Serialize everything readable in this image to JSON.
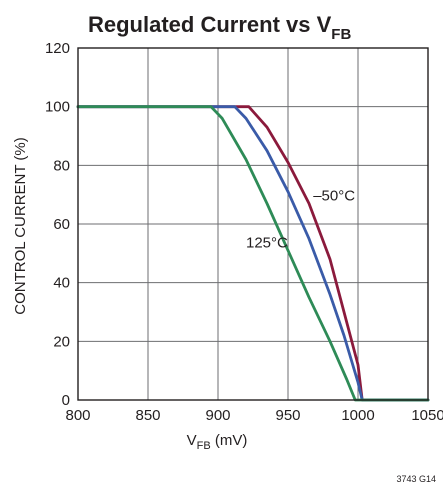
{
  "chart_data": {
    "type": "line",
    "title_main": "Regulated Current vs V",
    "title_sub": "FB",
    "xlabel_main": "V",
    "xlabel_sub": "FB",
    "xlabel_unit": " (mV)",
    "ylabel": "CONTROL CURRENT (%)",
    "xlim": [
      800,
      1050
    ],
    "ylim": [
      0,
      120
    ],
    "xticks": [
      800,
      850,
      900,
      950,
      1000,
      1050
    ],
    "yticks": [
      0,
      20,
      40,
      60,
      80,
      100,
      120
    ],
    "grid": true,
    "series": [
      {
        "name": "–50°C",
        "color": "#8b1a3c",
        "x": [
          800,
          922,
          935,
          950,
          965,
          980,
          990,
          1000,
          1003,
          1050
        ],
        "y": [
          100,
          100,
          93,
          81,
          67,
          48,
          30,
          12,
          0,
          0
        ]
      },
      {
        "name": "",
        "color": "#3a5ba8",
        "x": [
          800,
          912,
          920,
          935,
          950,
          965,
          980,
          990,
          1000,
          1003,
          1050
        ],
        "y": [
          100,
          100,
          96,
          85,
          71,
          55,
          36,
          22,
          6,
          0,
          0
        ]
      },
      {
        "name": "125°C",
        "color": "#2e8b57",
        "x": [
          800,
          895,
          903,
          920,
          935,
          950,
          965,
          980,
          992,
          998,
          1050
        ],
        "y": [
          100,
          100,
          96,
          82,
          67,
          51,
          35,
          20,
          7,
          0,
          0
        ]
      }
    ],
    "annotations": [
      {
        "text": "–50°C",
        "x": 968,
        "y": 68
      },
      {
        "text": "125°C",
        "x": 920,
        "y": 52
      }
    ],
    "figure_ref": "3743 G14"
  }
}
